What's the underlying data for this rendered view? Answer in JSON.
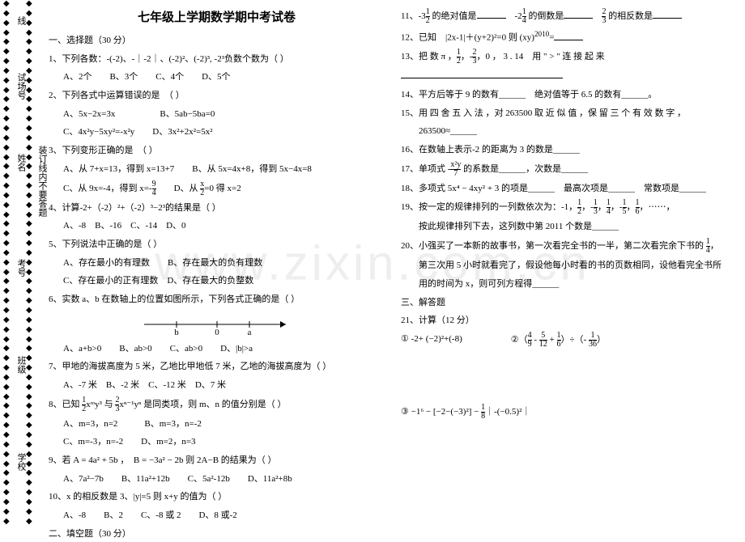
{
  "watermark": "www.zixin.com.cn",
  "margin": {
    "labels": [
      "线",
      "试场号",
      "姓名",
      "装订线内不要答题",
      "考号",
      "班级",
      "学校"
    ]
  },
  "title": "七年级上学期数学期中考试卷",
  "sectionA": "一、选择题（30 分）",
  "q1": {
    "stem": "1、下列各数：-(-2)、-｜-2｜、(-2)²、(-2)³, -2³负数个数为（  ）",
    "opts": "A、2个　　B、3个　　C、4个　　D、5个"
  },
  "q2": {
    "stem": "2、下列各式中运算错误的是　（  ）",
    "a": "A、5x−2x=3x　　　　　B、5ab−5ba=0",
    "b": "C、4x²y−5xy²=-x²y　　D、3x²+2x²=5x²"
  },
  "q3": {
    "stem": "3、下列变形正确的是　（  ）",
    "a": "A、从 7+x=13，得到 x=13+7　　B、从 5x=4x+8，得到 5x−4x=8",
    "b_pre": "C、从 9x=-4，得到 x=-",
    "b_mid": "　　D、从 ",
    "b_post": "=0 得 x=2"
  },
  "q4": {
    "stem": "4、计算-2+（-2）²+（-2）³−2³的结果是（  ）",
    "opts": "A、-8　B、-16　C、-14　D、0"
  },
  "q5": {
    "stem": "5、下列说法中正确的是（  ）",
    "a": "A、存在最小的有理数　　B、存在最大的负有理数",
    "b": "C、存在最小的正有理数　D、存在最大的负整数"
  },
  "q6": {
    "stem": "6、实数 a、b 在数轴上的位置如图所示，下列各式正确的是（  ）",
    "opts": "A、a+b>0　　B、ab>0　　C、ab>0　　D、|b|>a",
    "nl": {
      "b": "b",
      "zero": "0",
      "a": "a"
    }
  },
  "q7": {
    "stem": "7、甲地的海拔高度为 5 米，乙地比甲地低 7 米，乙地的海拔高度为（  ）",
    "opts": "A、-7 米　B、-2 米　C、-12 米　D、7 米"
  },
  "q8": {
    "stem_pre": "8、已知 ",
    "stem_post": " 是同类项，则 m、n 的值分别是（  ）",
    "a": "A、m=3，n=2　　　B、m=3，n=-2",
    "b": "C、m=-3，n=-2　　D、m=2，n=3"
  },
  "q9": {
    "stem": "9、若 A = 4a² + 5b ，　B = −3a² − 2b 则 2A−B 的结果为（  ）",
    "opts": "A、7a²−7b　　B、11a²+12b　　C、5a²-12b　　D、11a²+8b"
  },
  "q10": {
    "stem": "10、x 的相反数是 3、|y|=5 则 x+y 的值为（  ）",
    "opts": "A、-8　　B、2　　C、-8 或 2　　D、8 或-2"
  },
  "sectionB": "二、填空题（30 分）",
  "q11_pre": "11、-3",
  "q11_a": " 的绝对值是",
  "q11_b": "　-2",
  "q11_c": " 的倒数是",
  "q11_d": "　",
  "q11_e": " 的相反数是",
  "q12_pre": "12、已知　|2x-1|＋(y+2)²=0 则 (xy)",
  "q12_sup": "2010",
  "q12_post": "=",
  "q13_pre": "13、把 数 π ，",
  "q13_mid": "，-",
  "q13_post": "，0 ， 3 . 14　用 \" > \" 连 接 起 来",
  "q14": "14、平方后等于 9 的数有______　绝对值等于 6.5 的数有______。",
  "q15a": "15、用 四 舍 五 入 法 ，对 263500 取 近 似 值 ，保 留 三 个 有 效 数 字 ，",
  "q15b": "　　263500≈______",
  "q16": "16、在数轴上表示-2 的距离为 3 的数是______",
  "q17_pre": "17、单项式 -",
  "q17_post": " 的系数是______，次数是______",
  "q18_pre": "18、多项式 5x⁴ − 4xy² + 3 的项是______　最高次项是______　常数项是______",
  "q19_pre": "19、按一定的规律排列的一列数依次为：-1，",
  "q19_post": "，⋯⋯，",
  "q19_b": "　　按此规律排列下去，这列数中第 2011 个数是______",
  "q20_pre": "20、小强买了一本新的故事书，第一次看完全书的一半，第二次看完余下书的 ",
  "q20_b": "　　第三次用 5 小时就看完了，假设他每小时看的书的页数相同，设他看完全书所",
  "q20_c": "　　用的时间为 x，则可列方程得______",
  "sectionC": "三、解答题",
  "q21": "21、计算（12 分）",
  "q21_1": "① -2+ (−2)²+(-8)",
  "q21_2_pre": "②（",
  "q21_2_mid1": " - ",
  "q21_2_mid2": " + ",
  "q21_2_mid3": "）÷（- ",
  "q21_2_post": "）",
  "q21_3_pre": "③ −1⁶ − ",
  "q21_3_mid": " − ",
  "q21_3_post": "｜-(−0.5)²｜",
  "frac": {
    "nine_four": {
      "n": "9",
      "d": "4"
    },
    "x_two": {
      "n": "x",
      "d": "2"
    },
    "one_two": {
      "n": "1",
      "d": "2"
    },
    "one_three": {
      "n": "1",
      "d": "3"
    },
    "two_three": {
      "n": "2",
      "d": "3"
    },
    "one_four": {
      "n": "1",
      "d": "4"
    },
    "one_five": {
      "n": "1",
      "d": "5"
    },
    "one_six": {
      "n": "1",
      "d": "6"
    },
    "x2y_seven": {
      "n": "x²y",
      "d": "7"
    },
    "four_nine": {
      "n": "4",
      "d": "9"
    },
    "five_twelve": {
      "n": "5",
      "d": "12"
    },
    "one_thirtysix": {
      "n": "1",
      "d": "36"
    },
    "one_eight": {
      "n": "1",
      "d": "8"
    }
  },
  "colors": {
    "text": "#000000",
    "bg": "#ffffff",
    "wm": "#eeeeee"
  }
}
